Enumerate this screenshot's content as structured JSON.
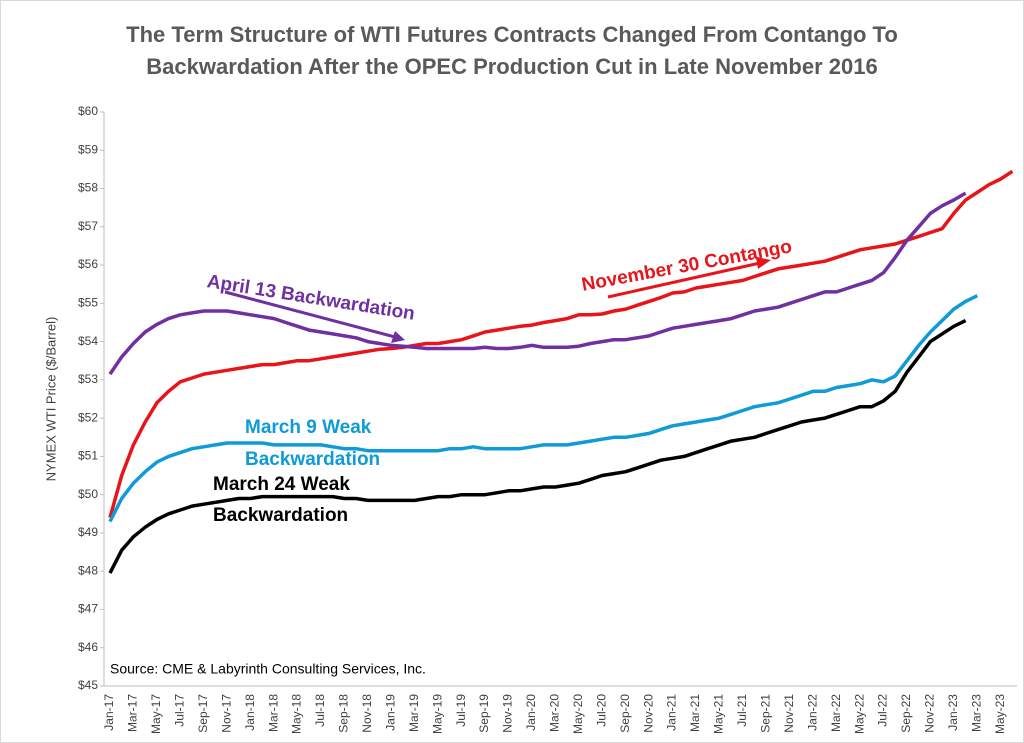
{
  "chart_data": {
    "type": "line",
    "title": [
      "The Term Structure of WTI Futures Contracts Changed From Contango To",
      "Backwardation After the OPEC Production Cut in Late November 2016"
    ],
    "y_label": "NYMEX WTI Price ($/Barrel)",
    "source": "Source: CME & Labyrinth Consulting Services, Inc.",
    "categories": [
      "Jan-17",
      null,
      "Mar-17",
      null,
      "May-17",
      null,
      "Jul-17",
      null,
      "Sep-17",
      null,
      "Nov-17",
      null,
      "Jan-18",
      null,
      "Mar-18",
      null,
      "May-18",
      null,
      "Jul-18",
      null,
      "Sep-18",
      null,
      "Nov-18",
      null,
      "Jan-19",
      null,
      "Mar-19",
      null,
      "May-19",
      null,
      "Jul-19",
      null,
      "Sep-19",
      null,
      "Nov-19",
      null,
      "Jan-20",
      null,
      "Mar-20",
      null,
      "May-20",
      null,
      "Jul-20",
      null,
      "Sep-20",
      null,
      "Nov-20",
      null,
      "Jan-21",
      null,
      "Mar-21",
      null,
      "May-21",
      null,
      "Jul-21",
      null,
      "Sep-21",
      null,
      "Nov-21",
      null,
      "Jan-22",
      null,
      "Mar-22",
      null,
      "May-22",
      null,
      "Jul-22",
      null,
      "Sep-22",
      null,
      "Nov-22",
      null,
      "Jan-23",
      null,
      "Mar-23",
      null,
      "May-23",
      null
    ],
    "ylim": [
      45,
      60
    ],
    "yticks": [
      {
        "value": 45,
        "label": "$45"
      },
      {
        "value": 46,
        "label": "$46"
      },
      {
        "value": 47,
        "label": "$47"
      },
      {
        "value": 48,
        "label": "$48"
      },
      {
        "value": 49,
        "label": "$49"
      },
      {
        "value": 50,
        "label": "$50"
      },
      {
        "value": 51,
        "label": "$51"
      },
      {
        "value": 52,
        "label": "$52"
      },
      {
        "value": 53,
        "label": "$53"
      },
      {
        "value": 54,
        "label": "$54"
      },
      {
        "value": 55,
        "label": "$55"
      },
      {
        "value": 56,
        "label": "$56"
      },
      {
        "value": 57,
        "label": "$57"
      },
      {
        "value": 58,
        "label": "$58"
      },
      {
        "value": 59,
        "label": "$59"
      },
      {
        "value": 60,
        "label": "$60"
      }
    ],
    "series": [
      {
        "color": "#e8141a",
        "values": [
          49.4,
          50.5,
          51.3,
          51.9,
          52.4,
          52.7,
          52.95,
          53.05,
          53.15,
          53.2,
          53.25,
          53.3,
          53.35,
          53.4,
          53.4,
          53.45,
          53.5,
          53.5,
          53.55,
          53.6,
          53.65,
          53.7,
          53.75,
          53.8,
          53.82,
          53.85,
          53.9,
          53.95,
          53.95,
          54.0,
          54.05,
          54.15,
          54.25,
          54.3,
          54.35,
          54.4,
          54.43,
          54.5,
          54.55,
          54.6,
          54.7,
          54.7,
          54.72,
          54.8,
          54.85,
          54.95,
          55.05,
          55.15,
          55.27,
          55.3,
          55.4,
          55.45,
          55.5,
          55.55,
          55.6,
          55.7,
          55.8,
          55.9,
          55.95,
          56.0,
          56.05,
          56.1,
          56.2,
          56.3,
          56.4,
          56.45,
          56.5,
          56.55,
          56.65,
          56.75,
          56.85,
          56.95,
          57.35,
          57.7,
          57.9,
          58.1,
          58.25,
          58.45
        ]
      },
      {
        "color": "#7030a0",
        "values": [
          53.15,
          53.6,
          53.95,
          54.25,
          54.45,
          54.6,
          54.7,
          54.75,
          54.8,
          54.8,
          54.8,
          54.75,
          54.7,
          54.65,
          54.6,
          54.5,
          54.4,
          54.3,
          54.25,
          54.2,
          54.15,
          54.1,
          54.0,
          53.95,
          53.9,
          53.88,
          53.85,
          53.82,
          53.82,
          53.82,
          53.82,
          53.82,
          53.85,
          53.82,
          53.82,
          53.85,
          53.9,
          53.85,
          53.85,
          53.85,
          53.88,
          53.95,
          54.0,
          54.05,
          54.05,
          54.1,
          54.15,
          54.25,
          54.35,
          54.4,
          54.45,
          54.5,
          54.55,
          54.6,
          54.7,
          54.8,
          54.85,
          54.9,
          55.0,
          55.1,
          55.2,
          55.3,
          55.3,
          55.4,
          55.5,
          55.6,
          55.8,
          56.2,
          56.65,
          57.0,
          57.35,
          57.55,
          57.7,
          57.88,
          null,
          null,
          null,
          null
        ]
      },
      {
        "color": "#0f9ad8",
        "values": [
          49.3,
          49.9,
          50.3,
          50.6,
          50.85,
          51.0,
          51.1,
          51.2,
          51.25,
          51.3,
          51.35,
          51.35,
          51.35,
          51.35,
          51.3,
          51.3,
          51.3,
          51.3,
          51.3,
          51.25,
          51.2,
          51.2,
          51.15,
          51.15,
          51.15,
          51.15,
          51.15,
          51.15,
          51.15,
          51.2,
          51.2,
          51.25,
          51.2,
          51.2,
          51.2,
          51.2,
          51.25,
          51.3,
          51.3,
          51.3,
          51.35,
          51.4,
          51.45,
          51.5,
          51.5,
          51.55,
          51.6,
          51.7,
          51.8,
          51.85,
          51.9,
          51.95,
          52.0,
          52.1,
          52.2,
          52.3,
          52.35,
          52.4,
          52.5,
          52.6,
          52.7,
          52.7,
          52.8,
          52.85,
          52.9,
          53.0,
          52.95,
          53.1,
          53.5,
          53.9,
          54.25,
          54.55,
          54.85,
          55.05,
          55.2,
          null,
          null,
          null
        ]
      },
      {
        "color": "#000000",
        "values": [
          47.95,
          48.55,
          48.9,
          49.15,
          49.35,
          49.5,
          49.6,
          49.7,
          49.75,
          49.8,
          49.85,
          49.9,
          49.9,
          49.95,
          49.95,
          49.95,
          49.95,
          49.95,
          49.95,
          49.95,
          49.9,
          49.9,
          49.85,
          49.85,
          49.85,
          49.85,
          49.85,
          49.9,
          49.95,
          49.95,
          50.0,
          50.0,
          50.0,
          50.05,
          50.1,
          50.1,
          50.15,
          50.2,
          50.2,
          50.25,
          50.3,
          50.4,
          50.5,
          50.55,
          50.6,
          50.7,
          50.8,
          50.9,
          50.95,
          51.0,
          51.1,
          51.2,
          51.3,
          51.4,
          51.45,
          51.5,
          51.6,
          51.7,
          51.8,
          51.9,
          51.95,
          52.0,
          52.1,
          52.2,
          52.3,
          52.3,
          52.45,
          52.7,
          53.2,
          53.6,
          54.0,
          54.2,
          54.4,
          54.55,
          null,
          null,
          null,
          null
        ]
      }
    ],
    "annotations": [
      {
        "lines": [
          "April 13 Backwardation"
        ],
        "color": "#7030a0"
      },
      {
        "lines": [
          "November 30 Contango"
        ],
        "color": "#e8141a"
      },
      {
        "lines": [
          "March 9 Weak",
          "Backwardation"
        ],
        "color": "#0f9ad8"
      },
      {
        "lines": [
          "March 24 Weak",
          "Backwardation"
        ],
        "color": "#000000"
      }
    ]
  }
}
